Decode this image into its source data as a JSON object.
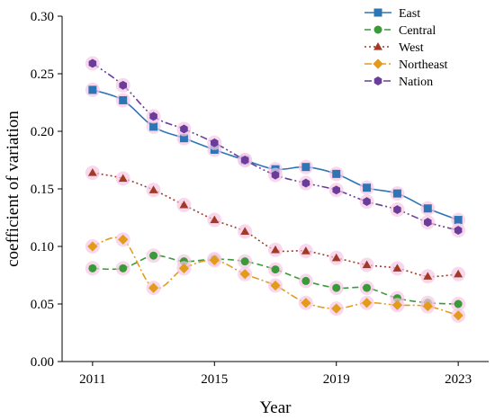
{
  "chart_data": {
    "type": "line",
    "title": "",
    "xlabel": "Year",
    "ylabel": "coefficient of variation",
    "x": [
      2011,
      2012,
      2013,
      2014,
      2015,
      2016,
      2017,
      2018,
      2019,
      2020,
      2021,
      2022,
      2023
    ],
    "xticks": [
      2011,
      2015,
      2019,
      2023
    ],
    "xlim": [
      2010,
      2024
    ],
    "ylim": [
      0,
      0.3
    ],
    "yticks": [
      0.0,
      0.05,
      0.1,
      0.15,
      0.2,
      0.25,
      0.3
    ],
    "ytick_labels": [
      "0.00",
      "0.05",
      "0.10",
      "0.15",
      "0.20",
      "0.25",
      "0.30"
    ],
    "grid": false,
    "legend_position": "top-right",
    "series": [
      {
        "name": "East",
        "color": "#2e75b6",
        "marker": "square",
        "line": "solid",
        "values": [
          0.236,
          0.227,
          0.204,
          0.194,
          0.184,
          0.175,
          0.167,
          0.169,
          0.163,
          0.151,
          0.146,
          0.133,
          0.123
        ]
      },
      {
        "name": "Central",
        "color": "#3a9a3a",
        "marker": "circle",
        "line": "dashed",
        "values": [
          0.081,
          0.081,
          0.092,
          0.087,
          0.089,
          0.087,
          0.08,
          0.07,
          0.064,
          0.064,
          0.055,
          0.051,
          0.05
        ]
      },
      {
        "name": "West",
        "color": "#a33a26",
        "marker": "triangle",
        "line": "dotted",
        "values": [
          0.164,
          0.159,
          0.149,
          0.136,
          0.123,
          0.113,
          0.097,
          0.096,
          0.09,
          0.084,
          0.081,
          0.074,
          0.076
        ]
      },
      {
        "name": "Northeast",
        "color": "#e39b1c",
        "marker": "diamond",
        "line": "dashdot",
        "values": [
          0.1,
          0.106,
          0.064,
          0.081,
          0.088,
          0.076,
          0.066,
          0.051,
          0.046,
          0.051,
          0.049,
          0.048,
          0.04
        ]
      },
      {
        "name": "Nation",
        "color": "#6a3d9a",
        "marker": "hexagon",
        "line": "dashdotdot",
        "values": [
          0.259,
          0.24,
          0.213,
          0.202,
          0.19,
          0.175,
          0.162,
          0.155,
          0.149,
          0.139,
          0.132,
          0.121,
          0.114
        ]
      }
    ]
  }
}
